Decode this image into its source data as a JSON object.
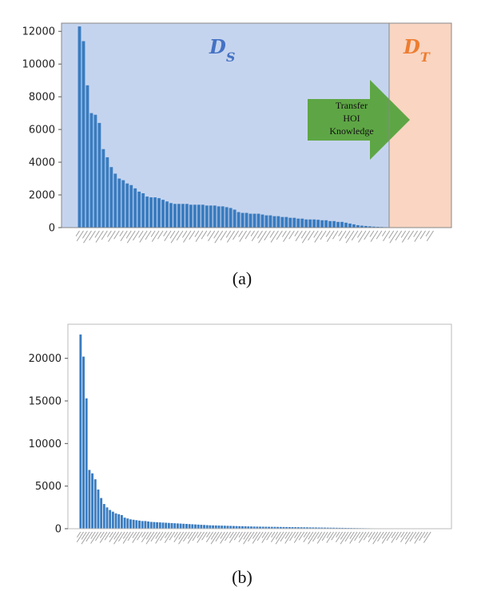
{
  "chart_data": [
    {
      "type": "bar",
      "panel": "(a)",
      "caption": "(a)",
      "ylim": [
        0,
        12500
      ],
      "yticks": [
        0,
        2000,
        4000,
        6000,
        8000,
        10000,
        12000
      ],
      "grid": false,
      "values": [
        12300,
        11400,
        8700,
        7000,
        6900,
        6400,
        4800,
        4300,
        3700,
        3300,
        3000,
        2900,
        2700,
        2600,
        2400,
        2200,
        2100,
        1900,
        1850,
        1850,
        1800,
        1700,
        1600,
        1500,
        1450,
        1450,
        1450,
        1450,
        1400,
        1400,
        1400,
        1400,
        1350,
        1350,
        1350,
        1300,
        1300,
        1250,
        1200,
        1100,
        950,
        900,
        900,
        850,
        850,
        850,
        800,
        750,
        750,
        700,
        700,
        650,
        650,
        600,
        600,
        550,
        550,
        500,
        500,
        500,
        480,
        450,
        450,
        400,
        400,
        350,
        350,
        300,
        250,
        200,
        150,
        120,
        100,
        80,
        60,
        50,
        40,
        30,
        20,
        15,
        12,
        10,
        8,
        6,
        5,
        4,
        3,
        3,
        2,
        2
      ],
      "regions": [
        {
          "name": "D_S",
          "label_main": "D",
          "label_sub": "S",
          "color": "#c5d4ee",
          "label_color": "#4472c4",
          "start_index": 0,
          "end_index": 74
        },
        {
          "name": "D_T",
          "label_main": "D",
          "label_sub": "T",
          "color": "#f9d5c2",
          "label_color": "#ed7d31",
          "start_index": 75,
          "end_index": 89
        }
      ],
      "annotation": {
        "lines": [
          "Transfer",
          "HOI",
          "Knowledge"
        ],
        "color": "#5ea645"
      },
      "bar_color": "#3a7cc0"
    },
    {
      "type": "bar",
      "panel": "(b)",
      "caption": "(b)",
      "ylim": [
        0,
        24000
      ],
      "yticks": [
        0,
        5000,
        10000,
        15000,
        20000
      ],
      "grid": false,
      "values": [
        22800,
        20200,
        15300,
        6900,
        6500,
        5800,
        4600,
        3600,
        2900,
        2500,
        2200,
        2000,
        1800,
        1700,
        1600,
        1300,
        1200,
        1100,
        1050,
        1000,
        950,
        900,
        900,
        850,
        800,
        780,
        760,
        740,
        720,
        700,
        680,
        660,
        640,
        620,
        600,
        580,
        560,
        540,
        520,
        500,
        480,
        460,
        440,
        420,
        400,
        390,
        380,
        370,
        360,
        350,
        340,
        330,
        320,
        310,
        300,
        290,
        280,
        270,
        260,
        250,
        245,
        240,
        235,
        230,
        225,
        220,
        215,
        210,
        205,
        200,
        195,
        190,
        185,
        180,
        175,
        170,
        165,
        160,
        155,
        150,
        145,
        140,
        135,
        130,
        125,
        120,
        115,
        110,
        105,
        100,
        95,
        90,
        85,
        80,
        75,
        70,
        65,
        60,
        55,
        50,
        48,
        46,
        44,
        42,
        40,
        38,
        36,
        34,
        32,
        30,
        28,
        26,
        24,
        22,
        20,
        18,
        16,
        14,
        12,
        10
      ],
      "bar_color": "#3a7cc0"
    }
  ]
}
